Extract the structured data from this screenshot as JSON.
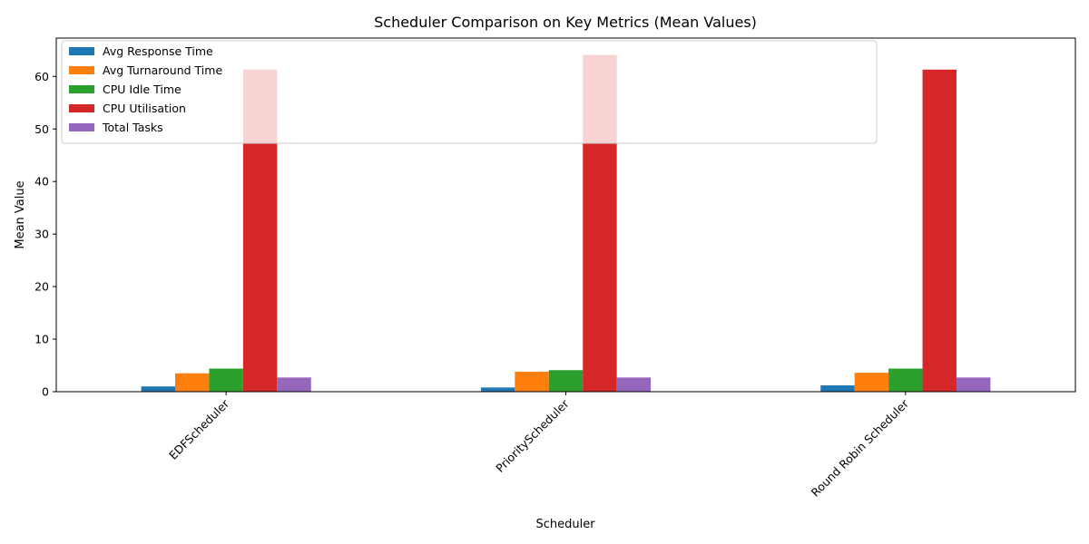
{
  "chart_data": {
    "type": "bar",
    "title": "Scheduler Comparison on Key Metrics (Mean Values)",
    "xlabel": "Scheduler",
    "ylabel": "Mean Value",
    "categories": [
      "EDFScheduler",
      "PriorityScheduler",
      "Round Robin Scheduler"
    ],
    "series": [
      {
        "name": "Avg Response Time",
        "color": "#1f77b4",
        "values": [
          1.0,
          0.8,
          1.2
        ]
      },
      {
        "name": "Avg Turnaround Time",
        "color": "#ff7f0e",
        "values": [
          3.5,
          3.8,
          3.6
        ]
      },
      {
        "name": "CPU Idle Time",
        "color": "#2ca02c",
        "values": [
          4.4,
          4.1,
          4.4
        ]
      },
      {
        "name": "CPU Utilisation",
        "color": "#d62728",
        "values": [
          61.3,
          64.1,
          61.3
        ]
      },
      {
        "name": "Total Tasks",
        "color": "#9467bd",
        "values": [
          2.7,
          2.7,
          2.7
        ]
      }
    ],
    "ylim": [
      0,
      67.3
    ],
    "yticks": [
      0,
      10,
      20,
      30,
      40,
      50,
      60
    ],
    "grid": false,
    "legend": "top-left"
  }
}
